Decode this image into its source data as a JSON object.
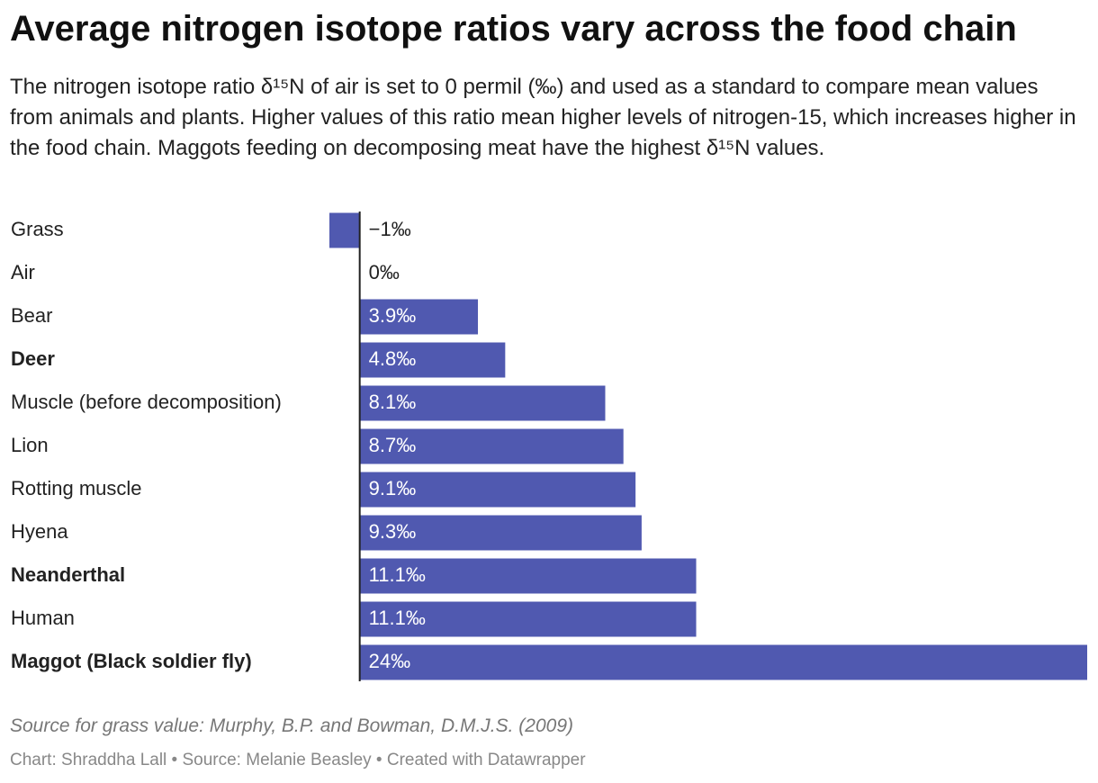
{
  "chart_data": {
    "type": "bar",
    "orientation": "horizontal",
    "title": "Average nitrogen isotope ratios vary across the food chain",
    "subtitle": "The nitrogen isotope ratio δ¹⁵N of air is set to 0 permil (‰) and used as a standard to compare mean values from animals and plants. Higher values of this ratio mean higher levels of nitrogen-15, which increases higher in the food chain. Maggots feeding on decomposing meat have the highest δ¹⁵N values.",
    "categories": [
      "Grass",
      "Air",
      "Bear",
      "Deer",
      "Muscle (before decomposition)",
      "Lion",
      "Rotting muscle",
      "Hyena",
      "Neanderthal",
      "Human",
      "Maggot (Black soldier fly)"
    ],
    "values": [
      -1,
      0,
      3.9,
      4.8,
      8.1,
      8.7,
      9.1,
      9.3,
      11.1,
      11.1,
      24
    ],
    "value_labels": [
      "−1‰",
      "0‰",
      "3.9‰",
      "4.8‰",
      "8.1‰",
      "8.7‰",
      "9.1‰",
      "9.3‰",
      "11.1‰",
      "11.1‰",
      "24‰"
    ],
    "bold_categories": [
      3,
      8,
      10
    ],
    "color": "#5059b0",
    "xlim": [
      -1,
      24
    ],
    "note": "Source for grass value: Murphy, B.P. and Bowman, D.M.J.S. (2009)",
    "byline": "Chart: Shraddha Lall • Source: Melanie Beasley • Created with Datawrapper"
  }
}
